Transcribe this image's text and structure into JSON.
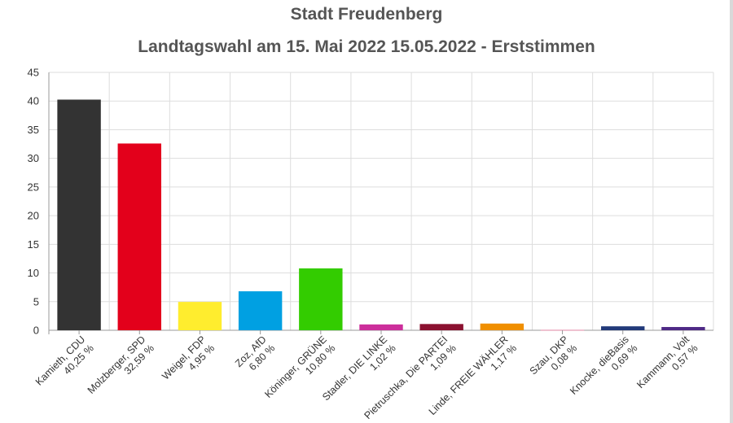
{
  "chart_data": {
    "type": "bar",
    "title": "Stadt Freudenberg",
    "subtitle": "Landtagswahl am 15. Mai 2022 15.05.2022  - Erststimmen",
    "ylim": [
      0,
      45
    ],
    "yticks": [
      0,
      5,
      10,
      15,
      20,
      25,
      30,
      35,
      40,
      45
    ],
    "grid": true,
    "categories": [
      {
        "name": "Kamieth, CDU",
        "pct": "40,25 %",
        "value": 40.25,
        "color": "#333333"
      },
      {
        "name": "Molzberger, SPD",
        "pct": "32,59 %",
        "value": 32.59,
        "color": "#e3001b"
      },
      {
        "name": "Weigel, FDP",
        "pct": "4,95 %",
        "value": 4.95,
        "color": "#ffed2e"
      },
      {
        "name": "Zoz, AfD",
        "pct": "6,80 %",
        "value": 6.8,
        "color": "#00a0e2"
      },
      {
        "name": "Köninger, GRÜNE",
        "pct": "10,80 %",
        "value": 10.8,
        "color": "#33cc00"
      },
      {
        "name": "Stadler, DIE LINKE",
        "pct": "1,02 %",
        "value": 1.02,
        "color": "#cc2e9b"
      },
      {
        "name": "Pietruschka, Die PARTEI",
        "pct": "1,09 %",
        "value": 1.09,
        "color": "#8b1130"
      },
      {
        "name": "Linde, FREIE WÄHLER",
        "pct": "1,17 %",
        "value": 1.17,
        "color": "#f08f00"
      },
      {
        "name": "Szau, DKP",
        "pct": "0,08 %",
        "value": 0.08,
        "color": "#e68aa8"
      },
      {
        "name": "Knocke, dieBasis",
        "pct": "0,69 %",
        "value": 0.69,
        "color": "#223a7a"
      },
      {
        "name": "Kammann, Volt",
        "pct": "0,57 %",
        "value": 0.57,
        "color": "#4f2a86"
      }
    ]
  }
}
